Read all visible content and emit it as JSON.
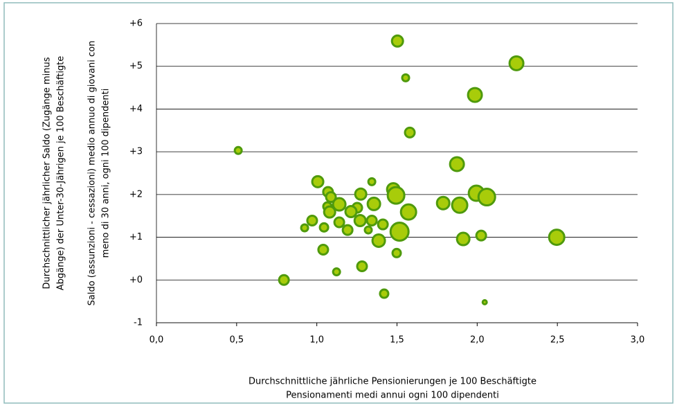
{
  "chart_data": {
    "type": "scatter",
    "xlabel": [
      "Durchschnittliche jährliche Pensionierungen je 100 Beschäftigte",
      "Pensionamenti medi annui ogni 100 dipendenti"
    ],
    "ylabel_de": [
      "Durchschnittlicher jährlicher Saldo (Zugänge minus",
      "Abgänge) der Unter-30-Jährigen je 100 Beschäftigte"
    ],
    "ylabel_it": [
      "Saldo (assunzioni - cessazioni) medio annuo di giovani con",
      "meno di 30 anni, ogni 100 dipendenti"
    ],
    "x": [
      1.503,
      2.245,
      1.554,
      1.986,
      1.58,
      0.51,
      1.874,
      1.006,
      1.343,
      1.07,
      1.477,
      1.274,
      1.494,
      1.995,
      2.06,
      1.088,
      1.14,
      1.356,
      1.788,
      1.891,
      1.066,
      1.252,
      1.213,
      1.572,
      1.08,
      0.971,
      1.27,
      1.343,
      1.14,
      1.045,
      1.412,
      0.924,
      1.192,
      1.321,
      1.516,
      2.025,
      2.496,
      1.913,
      1.386,
      1.04,
      1.498,
      1.282,
      1.123,
      0.795,
      1.42,
      2.047
    ],
    "y": [
      5.59,
      5.07,
      4.73,
      4.33,
      3.45,
      3.03,
      2.71,
      2.3,
      2.3,
      2.06,
      2.12,
      2.01,
      1.98,
      2.03,
      1.94,
      1.94,
      1.77,
      1.78,
      1.8,
      1.75,
      1.72,
      1.69,
      1.6,
      1.59,
      1.59,
      1.39,
      1.39,
      1.39,
      1.35,
      1.23,
      1.3,
      1.22,
      1.17,
      1.17,
      1.13,
      1.04,
      1.0,
      0.96,
      0.92,
      0.71,
      0.63,
      0.32,
      0.19,
      0.0,
      -0.32,
      -0.52
    ],
    "sizes": [
      8,
      10,
      5,
      10,
      7,
      5,
      10,
      8,
      5,
      7,
      9,
      8,
      12,
      11,
      12,
      7,
      9,
      9,
      9,
      11,
      6,
      7,
      8,
      11,
      8,
      7,
      8,
      7,
      7,
      6,
      7,
      5,
      7,
      5,
      13,
      7,
      11,
      9,
      9,
      7,
      6,
      7,
      5,
      7,
      6,
      3
    ],
    "color": "#a8cc0a",
    "edgecolor": "#4f9a0c",
    "xlim": [
      0,
      3
    ],
    "xticks": [
      {
        "value": 0,
        "label": "0,0"
      },
      {
        "value": 0.5,
        "label": "0,5"
      },
      {
        "value": 1,
        "label": "1,0"
      },
      {
        "value": 1.5,
        "label": "1,5"
      },
      {
        "value": 2,
        "label": "2,0"
      },
      {
        "value": 2.5,
        "label": "2,5"
      },
      {
        "value": 3,
        "label": "3,0"
      }
    ],
    "ylim": [
      -1,
      6
    ],
    "yticks": [
      -1,
      {
        "value": 0,
        "label": "+0"
      },
      {
        "value": 1,
        "label": "+1"
      },
      {
        "value": 2,
        "label": "+2"
      },
      {
        "value": 3,
        "label": "+3"
      },
      {
        "value": 4,
        "label": "+4"
      },
      {
        "value": 5,
        "label": "+5"
      },
      {
        "value": 6,
        "label": "+6"
      }
    ],
    "grid": true
  }
}
